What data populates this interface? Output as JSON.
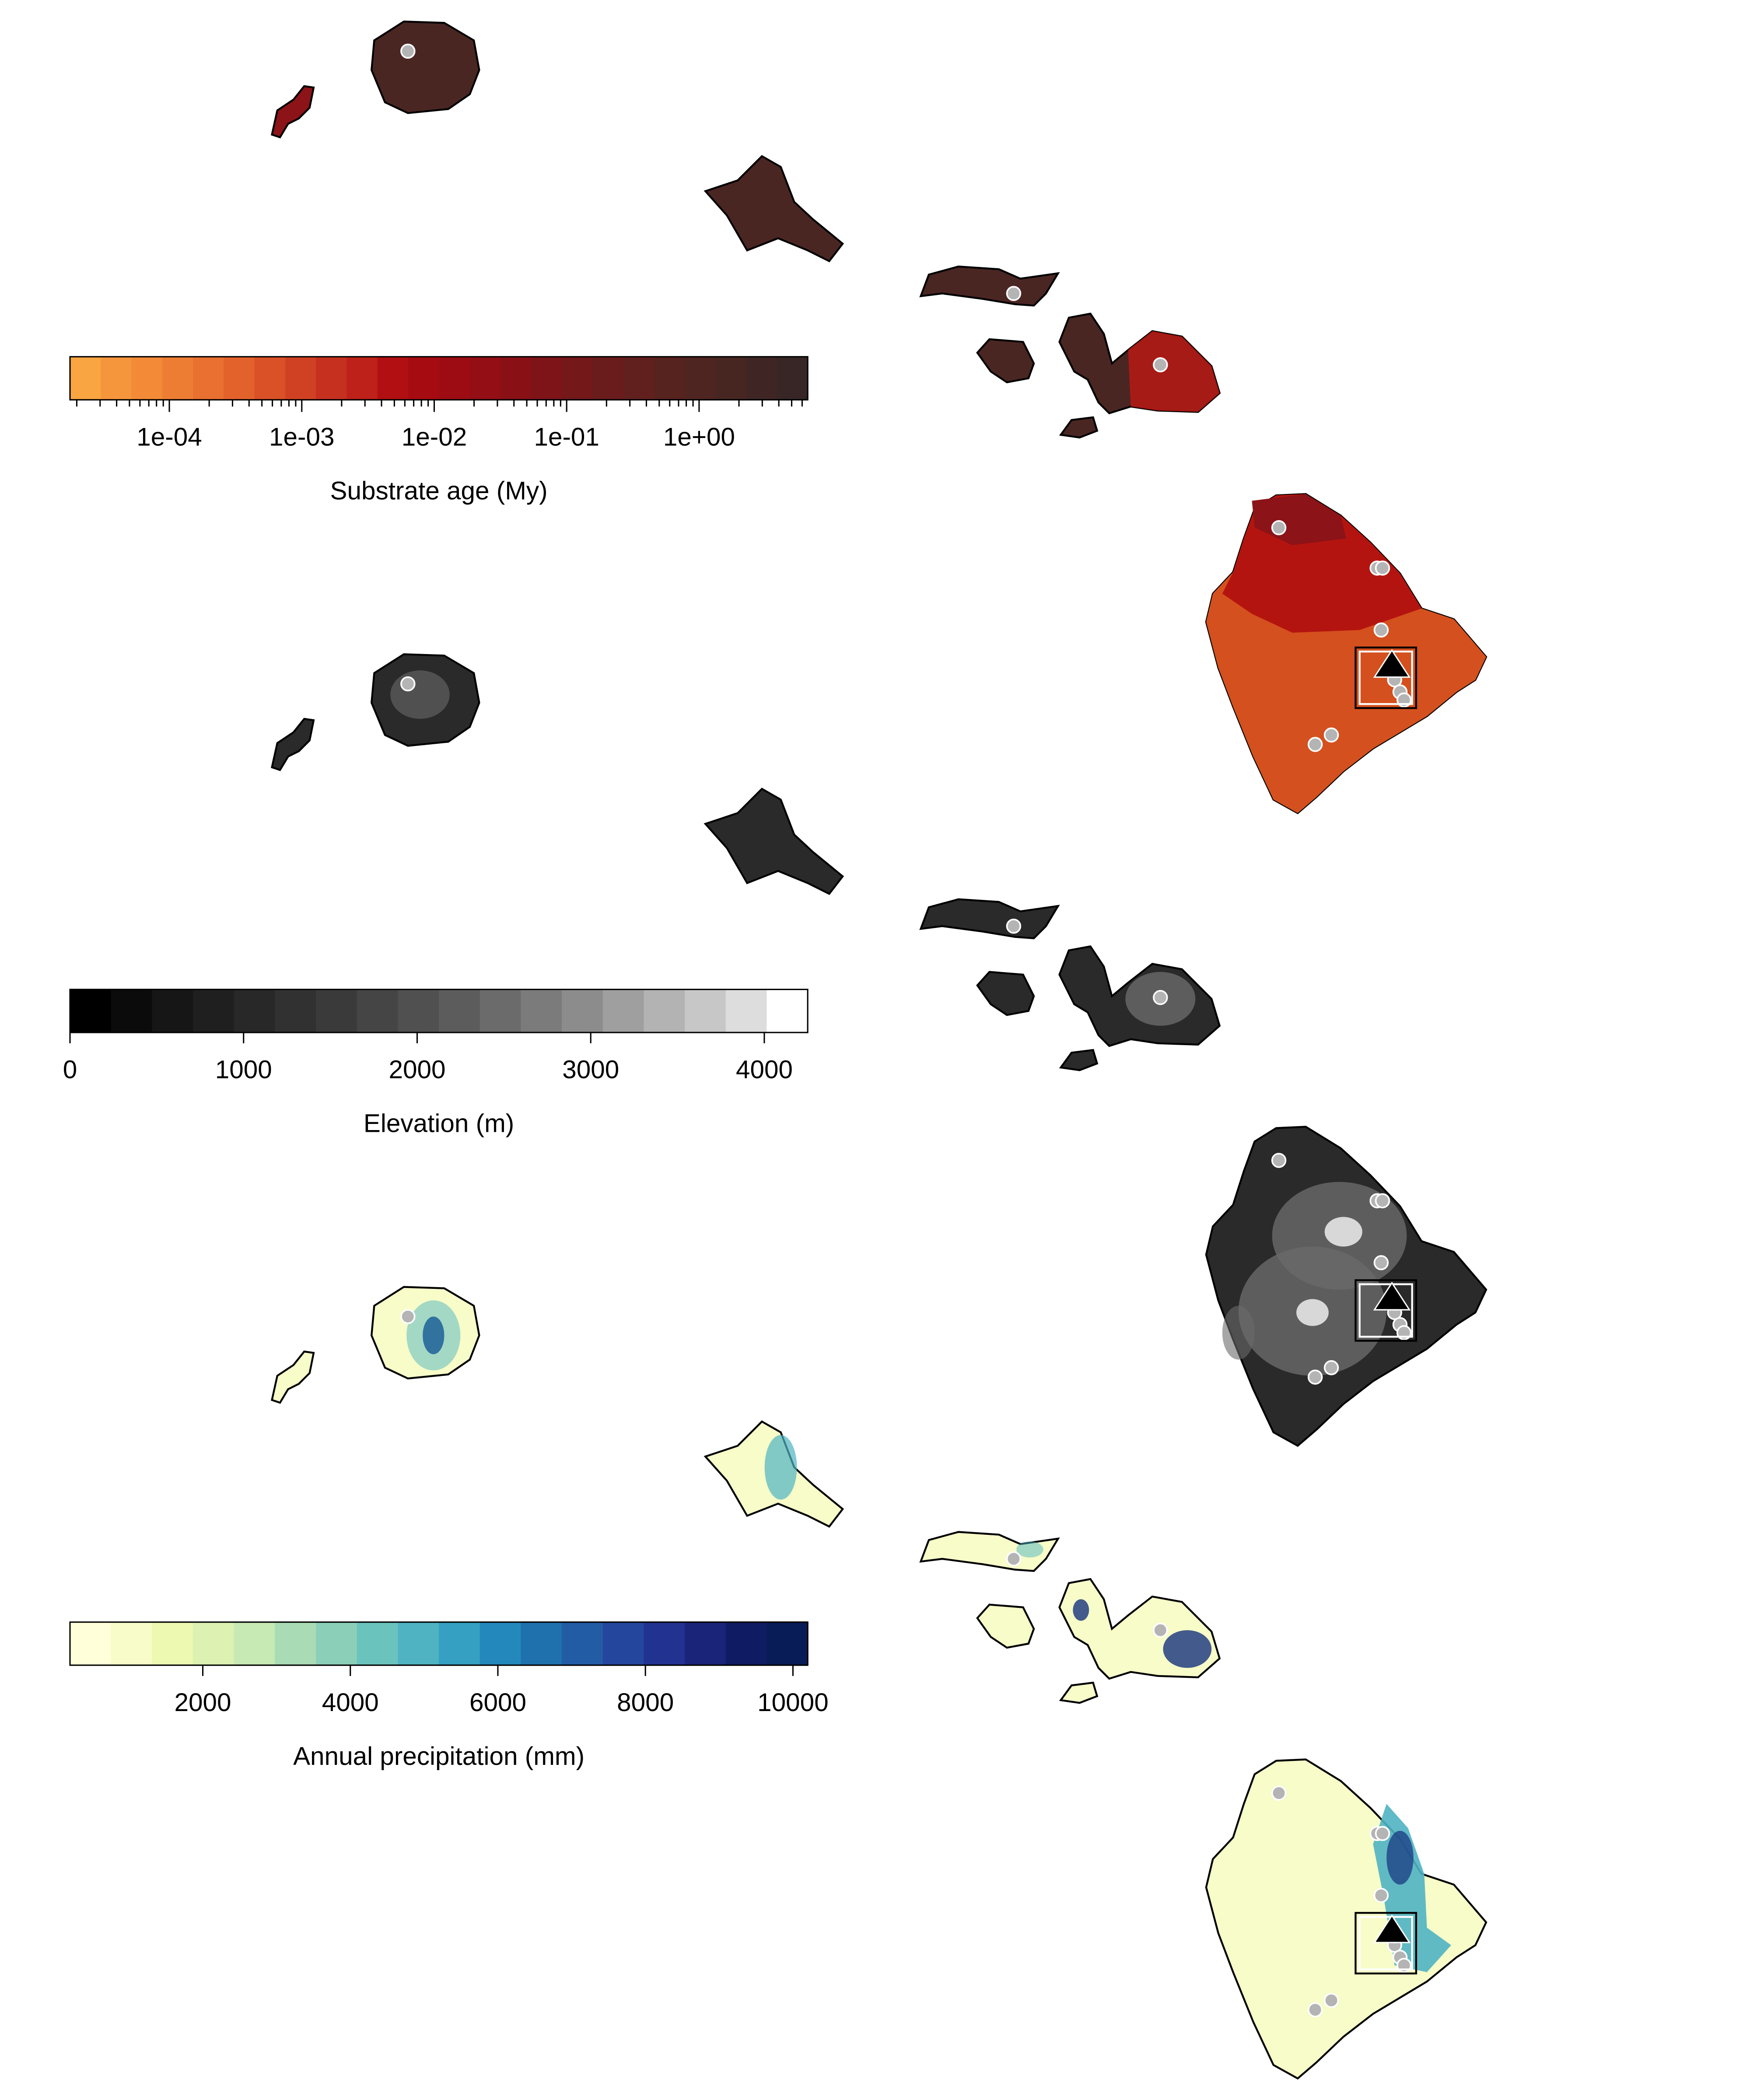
{
  "panels": [
    {
      "id": "substrate",
      "legend_title": "Substrate age (My)",
      "scale_type": "log",
      "ticks": [
        "1e-04",
        "1e-03",
        "1e-02",
        "1e-01",
        "1e+00"
      ],
      "colors": [
        "#f9a541",
        "#f6963c",
        "#f28a37",
        "#ee7d34",
        "#e97030",
        "#e3622c",
        "#da5128",
        "#d04123",
        "#c6301f",
        "#bd2119",
        "#b10f12",
        "#a70b12",
        "#9d0c13",
        "#930e15",
        "#891116",
        "#7e1418",
        "#74181a",
        "#6a1c1c",
        "#61201e",
        "#57231f",
        "#4f2521",
        "#472622",
        "#3f2624",
        "#372625"
      ],
      "island_colors": {
        "base": "#4a2623",
        "young": "#8c1317",
        "maui_east": "#b71a14",
        "hawaii_north": "#b4140f",
        "hawaii_south": "#d4501e"
      }
    },
    {
      "id": "elevation",
      "legend_title": "Elevation (m)",
      "scale_type": "linear",
      "ticks": [
        "0",
        "1000",
        "2000",
        "3000",
        "4000"
      ],
      "range": [
        0,
        4250
      ],
      "colors": [
        "#000000",
        "#0b0b0b",
        "#161616",
        "#1f1f1f",
        "#282828",
        "#313131",
        "#3a3a3a",
        "#454545",
        "#505050",
        "#5c5c5c",
        "#6b6b6b",
        "#7b7b7b",
        "#8c8c8c",
        "#9f9f9f",
        "#b3b3b3",
        "#c7c7c7",
        "#dddddd",
        "#ffffff"
      ],
      "island_colors": {
        "base": "#2a2a2a",
        "mid": "#6a6a6a",
        "high": "#d8d8d8"
      }
    },
    {
      "id": "precipitation",
      "legend_title": "Annual precipitation (mm)",
      "scale_type": "linear",
      "ticks": [
        "2000",
        "4000",
        "6000",
        "8000",
        "10000"
      ],
      "range": [
        200,
        10200
      ],
      "colors": [
        "#ffffd9",
        "#f7fcc8",
        "#edf8b1",
        "#dcf1b2",
        "#c7e9b4",
        "#a9dcb5",
        "#8ccfb9",
        "#6bc3be",
        "#4fb3c2",
        "#35a0c1",
        "#2389bd",
        "#1f71ad",
        "#225ca5",
        "#24469d",
        "#223291",
        "#1a2479",
        "#0f1c63",
        "#081d58"
      ],
      "island_colors": {
        "base": "#f7fcc8",
        "wet": "#4fb3c2",
        "wettest": "#15317d"
      }
    }
  ],
  "markers": {
    "site_color": "#b4b4b4",
    "triangle_color": "#000000",
    "site_icon": "circle-marker-icon",
    "highlight_icon": "triangle-marker-icon"
  }
}
